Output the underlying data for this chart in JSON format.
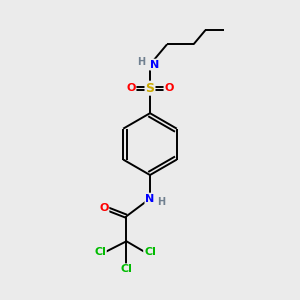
{
  "bg_color": "#ebebeb",
  "atom_colors": {
    "C": "#000000",
    "H": "#708090",
    "N": "#0000ff",
    "O": "#ff0000",
    "S": "#ccaa00",
    "Cl": "#00bb00"
  },
  "bond_color": "#000000",
  "fig_size": [
    3.0,
    3.0
  ],
  "dpi": 100
}
